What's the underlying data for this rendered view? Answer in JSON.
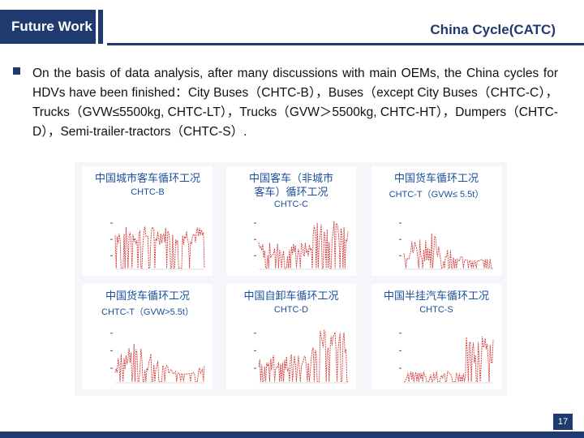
{
  "header": {
    "section_tab": "Future Work",
    "title": "China Cycle(CATC)"
  },
  "bullet": {
    "text": "On the basis of data analysis, after many discussions with main OEMs, the China cycles for HDVs have been finished：City Buses（CHTC-B），Buses（except City Buses（CHTC-C），Trucks（GVW≤5500kg, CHTC-LT），Trucks（GVW＞5500kg, CHTC-HT），Dumpers（CHTC-D），Semi-trailer-tractors（CHTC-S）."
  },
  "figures": [
    {
      "title_cn": "中国城市客车循环工况",
      "subtitle": "CHTC-B"
    },
    {
      "title_cn": "中国客车（非城市客车）循环工况",
      "subtitle": "CHTC-C"
    },
    {
      "title_cn": "中国货车循环工况",
      "subtitle": "CHTC-T（GVW≤ 5.5t）"
    },
    {
      "title_cn": "中国货车循环工况",
      "subtitle": "CHTC-T（GVW>5.5t）"
    },
    {
      "title_cn": "中国自卸车循环工况",
      "subtitle": "CHTC-D"
    },
    {
      "title_cn": "中国半挂汽车循环工况",
      "subtitle": "CHTC-S"
    }
  ],
  "footer": {
    "page_number": "17"
  },
  "colors": {
    "brand_navy": "#1f3a6e",
    "trace_red": "#d23a3a",
    "title_blue": "#1b4f9c"
  }
}
